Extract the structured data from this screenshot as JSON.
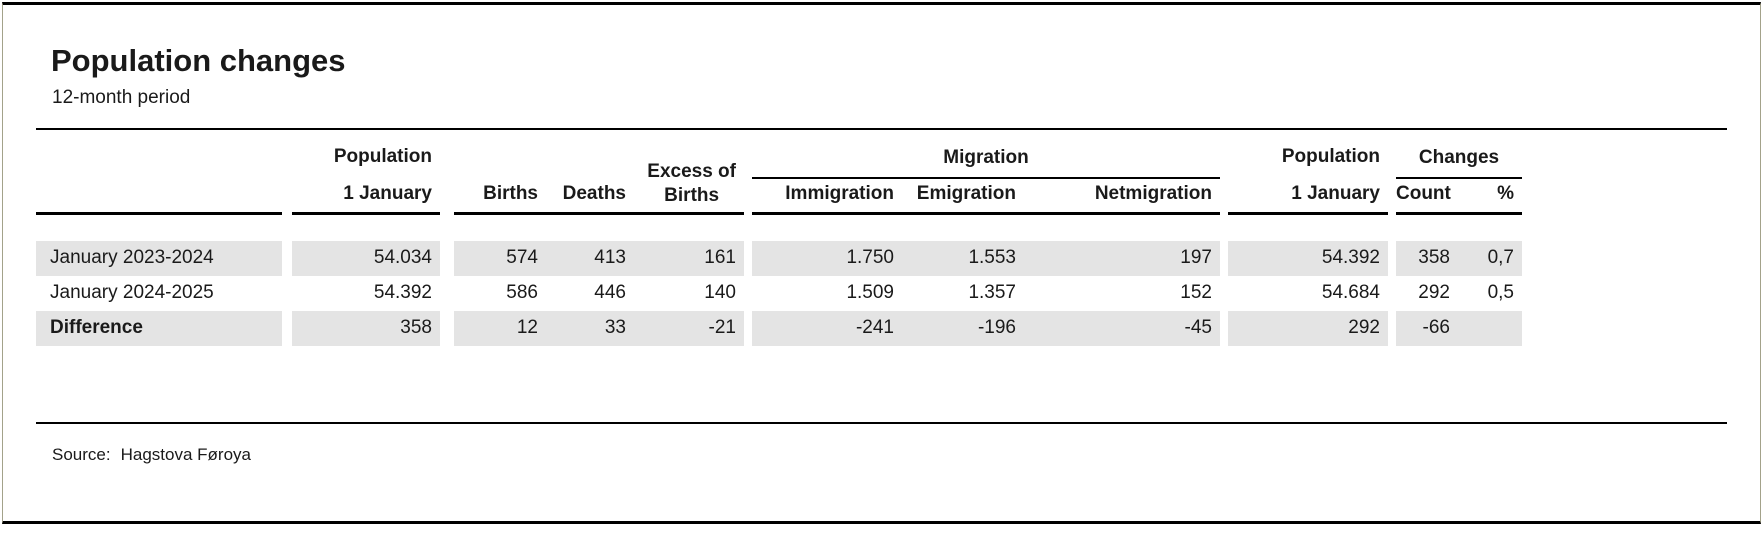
{
  "chart_data": {
    "type": "table",
    "title": "Population changes",
    "subtitle": "12-month period",
    "source_label": "Source:",
    "source_value": "Hagstova Føroya",
    "groups": {
      "migration": "Migration",
      "changes": "Changes"
    },
    "headers": {
      "population_top": "Population",
      "population_sub": "1 January",
      "births": "Births",
      "deaths": "Deaths",
      "excess_line1": "Excess of",
      "excess_line2": "Births",
      "immigration": "Immigration",
      "emigration": "Emigration",
      "netmigration": "Netmigration",
      "population2_top": "Population",
      "population2_sub": "1 January",
      "count": "Count",
      "pct": "%"
    },
    "rows": [
      {
        "label": "January 2023-2024",
        "pop1": "54.034",
        "births": "574",
        "deaths": "413",
        "excess": "161",
        "immigration": "1.750",
        "emigration": "1.553",
        "netmigration": "197",
        "pop2": "54.392",
        "count": "358",
        "pct": "0,7"
      },
      {
        "label": "January 2024-2025",
        "pop1": "54.392",
        "births": "586",
        "deaths": "446",
        "excess": "140",
        "immigration": "1.509",
        "emigration": "1.357",
        "netmigration": "152",
        "pop2": "54.684",
        "count": "292",
        "pct": "0,5"
      },
      {
        "label": "Difference",
        "pop1": "358",
        "births": "12",
        "deaths": "33",
        "excess": "-21",
        "immigration": "-241",
        "emigration": "-196",
        "netmigration": "-45",
        "pop2": "292",
        "count": "-66",
        "pct": ""
      }
    ]
  },
  "colors": {
    "stripe_band": "#e4e4e4",
    "rule": "#000000",
    "card_border": "#a3a28a",
    "text": "#1a1a1a"
  }
}
